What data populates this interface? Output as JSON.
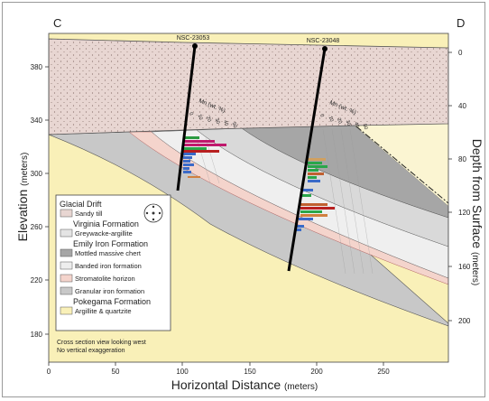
{
  "section": {
    "left_label": "C",
    "right_label": "D"
  },
  "axes": {
    "x": {
      "label": "Horizontal Distance",
      "unit": "(meters)",
      "ticks": [
        "0",
        "50",
        "100",
        "150",
        "200",
        "250"
      ]
    },
    "y_left": {
      "label": "Elevation",
      "unit": "(meters)",
      "ticks": [
        "380",
        "340",
        "300",
        "260",
        "220",
        "180"
      ]
    },
    "y_right": {
      "label": "Depth from Surface",
      "unit": "(meters)",
      "ticks": [
        "0",
        "40",
        "80",
        "120",
        "160",
        "200"
      ]
    }
  },
  "drillholes": [
    {
      "name": "NSC-23053",
      "mn_label": "Mn (wt. %)",
      "mn_ticks": [
        "0",
        "10",
        "20",
        "30",
        "40",
        "50"
      ]
    },
    {
      "name": "NSC-23048",
      "mn_label": "Mn (wt. %)",
      "mn_ticks": [
        "0",
        "10",
        "20",
        "30",
        "40",
        "50"
      ]
    }
  ],
  "legend": {
    "groups": [
      {
        "title": "Glacial Drift",
        "items": [
          {
            "label": "Sandy till",
            "color": "#e8d6d2"
          }
        ]
      },
      {
        "title": "Virginia Formation",
        "items": [
          {
            "label": "Greywacke-argillite",
            "color": "#e4e4e4"
          }
        ]
      },
      {
        "title": "Emily Iron Formation",
        "items": [
          {
            "label": "Mottled massive chert",
            "color": "#a6a6a6"
          },
          {
            "label": "Banded iron formation",
            "color": "#eeeeee"
          },
          {
            "label": "Stromatolite horizon",
            "color": "#f4d4cc"
          },
          {
            "label": "Granular iron formation",
            "color": "#c8c8c8"
          }
        ]
      },
      {
        "title": "Pokegama Formation",
        "items": [
          {
            "label": "Argillite & quartzite",
            "color": "#f9f0b8"
          }
        ]
      }
    ]
  },
  "notes": [
    "Cross section view looking west",
    "No vertical exaggeration"
  ],
  "colors": {
    "till": "#e8d6d2",
    "pokegama": "#f9f0b8",
    "chert": "#a6a6a6",
    "bif": "#eeeeee",
    "stromatolite": "#f4d4cc",
    "granular": "#c8c8c8",
    "greywacke": "#e4e4e4"
  }
}
